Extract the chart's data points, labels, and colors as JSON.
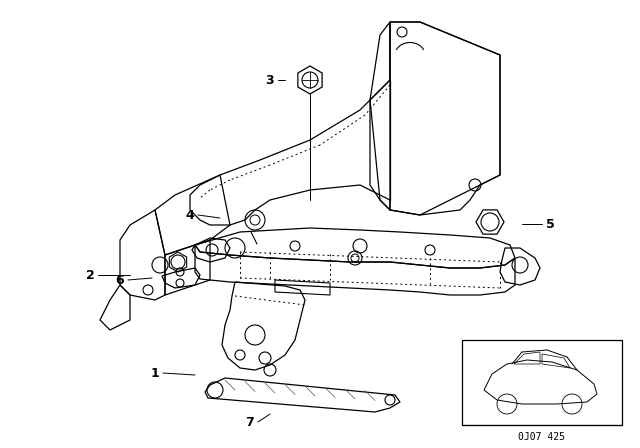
{
  "bg_color": "#ffffff",
  "line_color": "#000000",
  "diagram_code_text": "0J07 425",
  "figsize": [
    6.4,
    4.48
  ],
  "dpi": 100
}
